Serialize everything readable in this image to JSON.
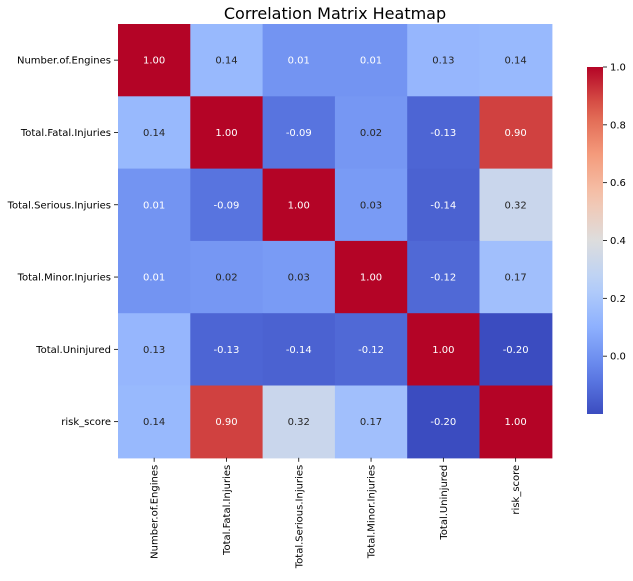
{
  "chart_data": {
    "type": "heatmap",
    "title": "Correlation Matrix Heatmap",
    "xlabel": "",
    "ylabel": "",
    "rows": [
      "Number.of.Engines",
      "Total.Fatal.Injuries",
      "Total.Serious.Injuries",
      "Total.Minor.Injuries",
      "Total.Uninjured",
      "risk_score"
    ],
    "columns": [
      "Number.of.Engines",
      "Total.Fatal.Injuries",
      "Total.Serious.Injuries",
      "Total.Minor.Injuries",
      "Total.Uninjured",
      "risk_score"
    ],
    "values": [
      [
        1.0,
        0.14,
        0.01,
        0.01,
        0.13,
        0.14
      ],
      [
        0.14,
        1.0,
        -0.09,
        0.02,
        -0.13,
        0.9
      ],
      [
        0.01,
        -0.09,
        1.0,
        0.03,
        -0.14,
        0.32
      ],
      [
        0.01,
        0.02,
        0.03,
        1.0,
        -0.12,
        0.17
      ],
      [
        0.13,
        -0.13,
        -0.14,
        -0.12,
        1.0,
        -0.2
      ],
      [
        0.14,
        0.9,
        0.32,
        0.17,
        -0.2,
        1.0
      ]
    ],
    "value_labels": [
      [
        "1.00",
        "0.14",
        "0.01",
        "0.01",
        "0.13",
        "0.14"
      ],
      [
        "0.14",
        "1.00",
        "-0.09",
        "0.02",
        "-0.13",
        "0.90"
      ],
      [
        "0.01",
        "-0.09",
        "1.00",
        "0.03",
        "-0.14",
        "0.32"
      ],
      [
        "0.01",
        "0.02",
        "0.03",
        "1.00",
        "-0.12",
        "0.17"
      ],
      [
        "0.13",
        "-0.13",
        "-0.14",
        "-0.12",
        "1.00",
        "-0.20"
      ],
      [
        "0.14",
        "0.90",
        "0.32",
        "0.17",
        "-0.20",
        "1.00"
      ]
    ],
    "colormap": "coolwarm",
    "colorbar": {
      "range": [
        -0.2,
        1.0
      ],
      "ticks": [
        0.0,
        0.2,
        0.4,
        0.6,
        0.8,
        1.0
      ],
      "tick_labels": [
        "0.0",
        "0.2",
        "0.4",
        "0.6",
        "0.8",
        "1.0"
      ],
      "placement": "right"
    },
    "grid": false,
    "legend": "none"
  }
}
